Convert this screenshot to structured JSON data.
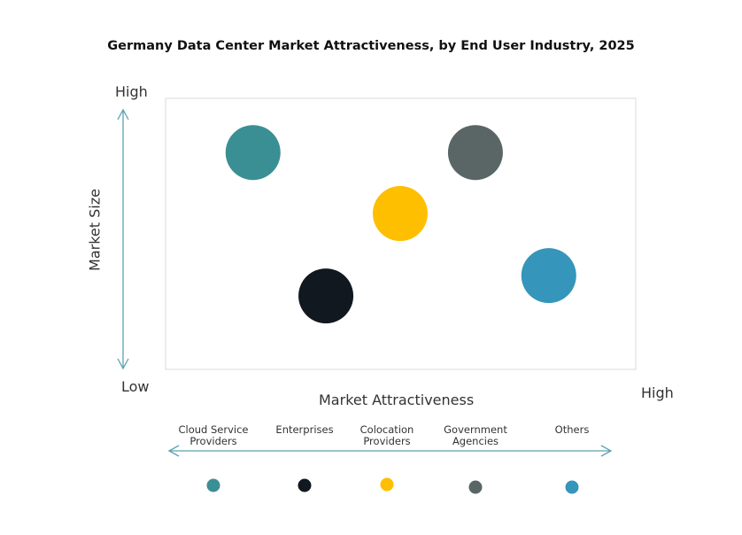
{
  "chart_data": {
    "type": "scatter",
    "title": "Germany Data Center Market Attractiveness,  by End User Industry, 2025",
    "xlabel": "Market Attractiveness",
    "ylabel": "Market Size",
    "x_low_label": "Low",
    "x_high_label": "High",
    "y_high_label": "High",
    "xlim": [
      0,
      100
    ],
    "ylim": [
      0,
      100
    ],
    "grid": false,
    "legend_placement": "bottom",
    "series": [
      {
        "name": "Cloud Service Providers",
        "x": 18.6,
        "y": 80,
        "color": "#3a8f94"
      },
      {
        "name": "Enterprises",
        "x": 34.1,
        "y": 27.1,
        "color": "#111820"
      },
      {
        "name": "Colocation Providers",
        "x": 49.9,
        "y": 57.5,
        "color": "#fdbf00"
      },
      {
        "name": "Government Agencies",
        "x": 65.9,
        "y": 80,
        "color": "#5a6666"
      },
      {
        "name": "Others",
        "x": 81.5,
        "y": 34.6,
        "color": "#3595bb"
      }
    ],
    "axis_color": "#5aa3b0",
    "frame_color": "#d9d9d9"
  }
}
